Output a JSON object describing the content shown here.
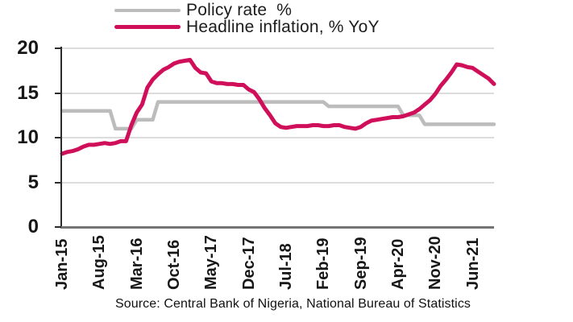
{
  "legend": [
    {
      "label": "Policy rate  %",
      "color": "#bcbcbc"
    },
    {
      "label": "Headline inflation, % YoY",
      "color": "#d00f5a"
    }
  ],
  "source_note": "Source: Central Bank of Nigeria, National Bureau of Statistics",
  "colors": {
    "policy_rate": "#bcbcbc",
    "headline_inflation": "#d00f5a",
    "gridline": "#dcdcdc",
    "y_axis": "#2b2b2b",
    "x_axis": "#747474"
  },
  "chart_data": {
    "type": "line",
    "title": "",
    "xlabel": "",
    "ylabel": "",
    "ylim": [
      0,
      20
    ],
    "yticks": [
      0,
      5,
      10,
      15,
      20
    ],
    "grid": true,
    "legend_position": "top",
    "x": [
      "Jan-15",
      "Feb-15",
      "Mar-15",
      "Apr-15",
      "May-15",
      "Jun-15",
      "Jul-15",
      "Aug-15",
      "Sep-15",
      "Oct-15",
      "Nov-15",
      "Dec-15",
      "Jan-16",
      "Feb-16",
      "Mar-16",
      "Apr-16",
      "May-16",
      "Jun-16",
      "Jul-16",
      "Aug-16",
      "Sep-16",
      "Oct-16",
      "Nov-16",
      "Dec-16",
      "Jan-17",
      "Feb-17",
      "Mar-17",
      "Apr-17",
      "May-17",
      "Jun-17",
      "Jul-17",
      "Aug-17",
      "Sep-17",
      "Oct-17",
      "Nov-17",
      "Dec-17",
      "Jan-18",
      "Feb-18",
      "Mar-18",
      "Apr-18",
      "May-18",
      "Jun-18",
      "Jul-18",
      "Aug-18",
      "Sep-18",
      "Oct-18",
      "Nov-18",
      "Dec-18",
      "Jan-19",
      "Feb-19",
      "Mar-19",
      "Apr-19",
      "May-19",
      "Jun-19",
      "Jul-19",
      "Aug-19",
      "Sep-19",
      "Oct-19",
      "Nov-19",
      "Dec-19",
      "Jan-20",
      "Feb-20",
      "Mar-20",
      "Apr-20",
      "May-20",
      "Jun-20",
      "Jul-20",
      "Aug-20",
      "Sep-20",
      "Oct-20",
      "Nov-20",
      "Dec-20",
      "Jan-21",
      "Feb-21",
      "Mar-21",
      "Apr-21",
      "May-21",
      "Jun-21",
      "Jul-21",
      "Aug-21",
      "Sep-21",
      "Oct-21"
    ],
    "x_tick_labels": [
      "Jan-15",
      "Aug-15",
      "Mar-16",
      "Oct-16",
      "May-17",
      "Dec-17",
      "Jul-18",
      "Feb-19",
      "Sep-19",
      "Apr-20",
      "Nov-20",
      "Jun-21"
    ],
    "x_tick_indices": [
      0,
      7,
      14,
      21,
      28,
      35,
      42,
      49,
      56,
      63,
      70,
      77
    ],
    "series": [
      {
        "name": "Policy rate %",
        "color": "#bcbcbc",
        "values": [
          13,
          13,
          13,
          13,
          13,
          13,
          13,
          13,
          13,
          13,
          11,
          11,
          11,
          11,
          12,
          12,
          12,
          12,
          14,
          14,
          14,
          14,
          14,
          14,
          14,
          14,
          14,
          14,
          14,
          14,
          14,
          14,
          14,
          14,
          14,
          14,
          14,
          14,
          14,
          14,
          14,
          14,
          14,
          14,
          14,
          14,
          14,
          14,
          14,
          14,
          13.5,
          13.5,
          13.5,
          13.5,
          13.5,
          13.5,
          13.5,
          13.5,
          13.5,
          13.5,
          13.5,
          13.5,
          13.5,
          13.5,
          12.5,
          12.5,
          12.5,
          12.5,
          11.5,
          11.5,
          11.5,
          11.5,
          11.5,
          11.5,
          11.5,
          11.5,
          11.5,
          11.5,
          11.5,
          11.5,
          11.5,
          11.5
        ]
      },
      {
        "name": "Headline inflation, % YoY",
        "color": "#d00f5a",
        "values": [
          8.2,
          8.4,
          8.5,
          8.7,
          9.0,
          9.2,
          9.2,
          9.3,
          9.4,
          9.3,
          9.4,
          9.6,
          9.6,
          11.4,
          12.8,
          13.7,
          15.6,
          16.5,
          17.1,
          17.6,
          17.9,
          18.3,
          18.5,
          18.6,
          18.7,
          17.8,
          17.3,
          17.2,
          16.3,
          16.1,
          16.1,
          16.0,
          16.0,
          15.9,
          15.9,
          15.4,
          15.1,
          14.3,
          13.3,
          12.5,
          11.6,
          11.2,
          11.1,
          11.2,
          11.3,
          11.3,
          11.3,
          11.4,
          11.4,
          11.3,
          11.3,
          11.4,
          11.4,
          11.2,
          11.1,
          11.0,
          11.2,
          11.6,
          11.9,
          12.0,
          12.1,
          12.2,
          12.3,
          12.3,
          12.4,
          12.6,
          12.8,
          13.2,
          13.7,
          14.2,
          14.9,
          15.8,
          16.5,
          17.3,
          18.2,
          18.1,
          17.9,
          17.8,
          17.4,
          17.0,
          16.6,
          16.0
        ]
      }
    ]
  }
}
